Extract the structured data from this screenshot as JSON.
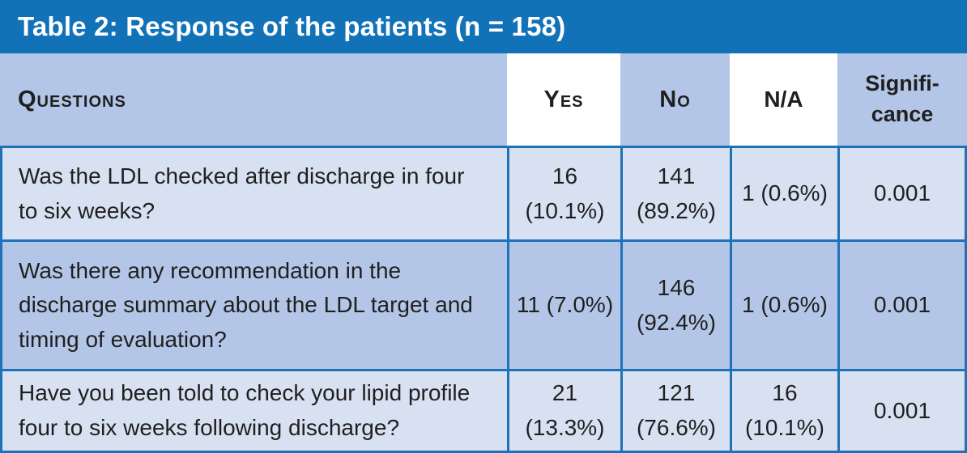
{
  "title": "Table 2: Response of the patients (n = 158)",
  "columns": [
    {
      "label": "Questions"
    },
    {
      "label": "Yes"
    },
    {
      "label": "No"
    },
    {
      "label": "N/A"
    },
    {
      "label": "Signifi-\ncance"
    }
  ],
  "rows": [
    {
      "question": "Was the LDL checked after discharge in four\nto six weeks?",
      "yes": "16\n(10.1%)",
      "no": "141\n(89.2%)",
      "na": "1 (0.6%)",
      "significance": "0.001"
    },
    {
      "question": "Was there any recommendation in the\ndischarge summary about the LDL target and\ntiming of evaluation?",
      "yes": "11 (7.0%)",
      "no": "146\n(92.4%)",
      "na": "1 (0.6%)",
      "significance": "0.001"
    },
    {
      "question": "Have you been told to check your lipid profile\nfour to six weeks following discharge?",
      "yes": "21\n(13.3%)",
      "no": "121\n(76.6%)",
      "na": "16\n(10.1%)",
      "significance": "0.001"
    }
  ],
  "colors": {
    "title-bg": "#1172b8",
    "title-text": "#ffffff",
    "header-blue": "#b4c6e7",
    "row-light": "#d8e1f1",
    "row-medium": "#b4c6e7",
    "cell-white": "#ffffff",
    "border-blue": "#1e72b8",
    "text-dark": "#1f1f1f"
  }
}
